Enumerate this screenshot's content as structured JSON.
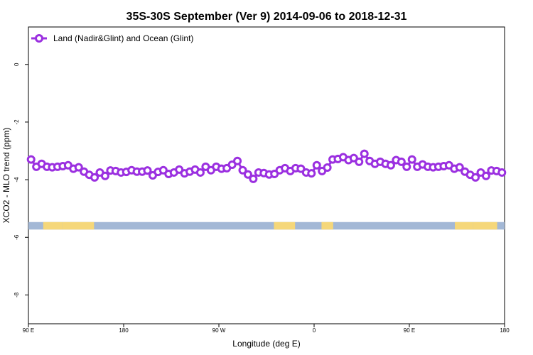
{
  "chart_data": {
    "type": "line",
    "title": "35S-30S September (Ver 9)   2014-09-06 to 2018-12-31",
    "xlabel": "Longitude (deg E)",
    "ylabel": "XCO2 - MLO trend (ppm)",
    "x_ticks": [
      "90 E",
      "180",
      "90 W",
      "0",
      "90 E",
      "180"
    ],
    "y_ticks": [
      "0",
      "-2",
      "-4",
      "-6",
      "-8"
    ],
    "y_tick_values": [
      0,
      -2,
      -4,
      -6,
      -8
    ],
    "x_tick_values": [
      90,
      180,
      270,
      360,
      450,
      540
    ],
    "xlim": [
      90,
      540
    ],
    "ylim": [
      -9.0,
      1.3
    ],
    "grid": false,
    "legend_position": "top-left",
    "series": [
      {
        "name": "Land (Nadir&Glint) and Ocean (Glint)",
        "color": "#9b30e0",
        "x": [
          92.5,
          97.5,
          102.5,
          107.5,
          112.5,
          117.5,
          122.5,
          127.5,
          132.5,
          137.5,
          142.5,
          147.5,
          152.5,
          157.5,
          162.5,
          167.5,
          172.5,
          177.5,
          182.5,
          187.5,
          192.5,
          197.5,
          202.5,
          207.5,
          212.5,
          217.5,
          222.5,
          227.5,
          232.5,
          237.5,
          242.5,
          247.5,
          252.5,
          257.5,
          262.5,
          267.5,
          272.5,
          277.5,
          282.5,
          287.5,
          292.5,
          297.5,
          302.5,
          307.5,
          312.5,
          317.5,
          322.5,
          327.5,
          332.5,
          337.5,
          342.5,
          347.5,
          352.5,
          357.5,
          362.5,
          367.5,
          372.5,
          377.5,
          382.5,
          387.5,
          392.5,
          397.5,
          402.5,
          407.5,
          412.5,
          417.5,
          422.5,
          427.5,
          432.5,
          437.5,
          442.5,
          447.5,
          452.5,
          457.5,
          462.5,
          467.5,
          472.5,
          477.5,
          482.5,
          487.5,
          492.5,
          497.5,
          502.5,
          507.5,
          512.5,
          517.5,
          522.5,
          527.5,
          532.5,
          537.5
        ],
        "y": [
          -3.3,
          -3.55,
          -3.45,
          -3.55,
          -3.57,
          -3.55,
          -3.53,
          -3.5,
          -3.62,
          -3.57,
          -3.72,
          -3.83,
          -3.92,
          -3.75,
          -3.87,
          -3.68,
          -3.7,
          -3.75,
          -3.73,
          -3.67,
          -3.72,
          -3.72,
          -3.68,
          -3.85,
          -3.73,
          -3.67,
          -3.8,
          -3.75,
          -3.65,
          -3.78,
          -3.72,
          -3.65,
          -3.75,
          -3.55,
          -3.67,
          -3.55,
          -3.62,
          -3.6,
          -3.48,
          -3.35,
          -3.67,
          -3.82,
          -3.97,
          -3.75,
          -3.77,
          -3.82,
          -3.8,
          -3.67,
          -3.6,
          -3.7,
          -3.6,
          -3.62,
          -3.75,
          -3.78,
          -3.5,
          -3.7,
          -3.58,
          -3.3,
          -3.28,
          -3.22,
          -3.32,
          -3.25,
          -3.38,
          -3.1,
          -3.35,
          -3.45,
          -3.38,
          -3.45,
          -3.5,
          -3.32,
          -3.38,
          -3.55,
          -3.3,
          -3.55,
          -3.47,
          -3.55,
          -3.57,
          -3.55,
          -3.53,
          -3.5,
          -3.62,
          -3.57,
          -3.72,
          -3.83,
          -3.92,
          -3.75,
          -3.87,
          -3.68,
          -3.7,
          -3.75
        ]
      }
    ],
    "land_strip": {
      "y_range": [
        -5.73,
        -5.47
      ],
      "ocean_color": "#a3b8d6",
      "land_color": "#f5d77a",
      "land_lon_ranges": [
        [
          104,
          122
        ],
        [
          122,
          152
        ],
        [
          322,
          342
        ],
        [
          367,
          378
        ],
        [
          493,
          510
        ],
        [
          510,
          533
        ]
      ]
    }
  }
}
